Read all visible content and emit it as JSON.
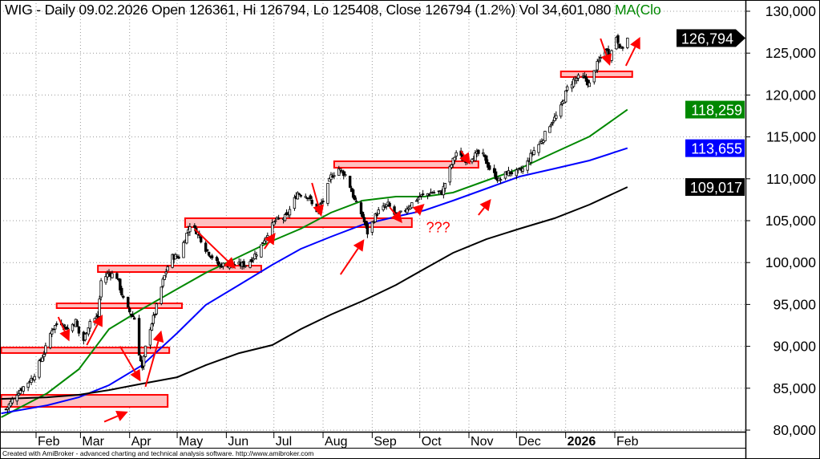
{
  "header": {
    "title": "WIG - Daily 09.02.2026 Open 126361, Hi 126794, Lo 125408, Close 126794 (1.2%) Vol 34,601,080",
    "ma_label": "MA(Clo"
  },
  "footer": "Created with AmiBroker - advanced charting and technical analysis software. http://www.amibroker.com",
  "colors": {
    "up_candle": "#ffffff",
    "down_candle": "#000000",
    "ma_green": "#008800",
    "ma_blue": "#0000ff",
    "ma_black": "#000000",
    "annotation": "#ff0000",
    "zone_fill": "#ffc0c0"
  },
  "chart_data": {
    "type": "candlestick",
    "symbol": "WIG",
    "interval": "Daily",
    "last_bar": {
      "date": "09.02.2026",
      "open": 126361,
      "high": 126794,
      "low": 125408,
      "close": 126794,
      "change_pct": 1.2,
      "volume": 34601080
    },
    "ylim": [
      80000,
      130000
    ],
    "y_ticks": [
      "130,000",
      "125,000",
      "120,000",
      "115,000",
      "110,000",
      "105,000",
      "100,000",
      "95,000",
      "90,000",
      "85,000",
      "80,000"
    ],
    "y_tick_values": [
      130000,
      125000,
      120000,
      115000,
      110000,
      105000,
      100000,
      95000,
      90000,
      85000,
      80000
    ],
    "x_ticks": [
      {
        "date": "2025-02-01",
        "label": "Feb"
      },
      {
        "date": "2025-03-01",
        "label": "Mar"
      },
      {
        "date": "2025-04-01",
        "label": "Apr"
      },
      {
        "date": "2025-05-01",
        "label": "May"
      },
      {
        "date": "2025-06-01",
        "label": "Jun"
      },
      {
        "date": "2025-07-01",
        "label": "Jul"
      },
      {
        "date": "2025-08-01",
        "label": "Aug"
      },
      {
        "date": "2025-09-01",
        "label": "Sep"
      },
      {
        "date": "2025-10-01",
        "label": "Oct"
      },
      {
        "date": "2025-11-01",
        "label": "Nov"
      },
      {
        "date": "2025-12-01",
        "label": "Dec"
      },
      {
        "date": "2026-01-01",
        "label": "2026",
        "bold": true
      },
      {
        "date": "2026-02-01",
        "label": "Feb"
      }
    ],
    "grid": true,
    "close_series": [
      [
        "2025-01-13",
        82480
      ],
      [
        "2025-01-20",
        84400
      ],
      [
        "2025-01-30",
        86300
      ],
      [
        "2025-02-06",
        89200
      ],
      [
        "2025-02-11",
        92060
      ],
      [
        "2025-02-16",
        93020
      ],
      [
        "2025-02-21",
        92060
      ],
      [
        "2025-02-26",
        93020
      ],
      [
        "2025-03-02",
        90150
      ],
      [
        "2025-03-07",
        93020
      ],
      [
        "2025-03-12",
        93500
      ],
      [
        "2025-03-14",
        97800
      ],
      [
        "2025-03-19",
        98770
      ],
      [
        "2025-03-24",
        98290
      ],
      [
        "2025-03-29",
        94940
      ],
      [
        "2025-04-05",
        93020
      ],
      [
        "2025-04-07",
        89200
      ],
      [
        "2025-04-09",
        87270
      ],
      [
        "2025-04-12",
        91100
      ],
      [
        "2025-04-17",
        93980
      ],
      [
        "2025-04-22",
        97800
      ],
      [
        "2025-04-27",
        100690
      ],
      [
        "2025-05-02",
        100690
      ],
      [
        "2025-05-09",
        104520
      ],
      [
        "2025-05-14",
        103560
      ],
      [
        "2025-05-19",
        101640
      ],
      [
        "2025-05-27",
        99730
      ],
      [
        "2025-06-04",
        99730
      ],
      [
        "2025-06-09",
        99730
      ],
      [
        "2025-06-14",
        99730
      ],
      [
        "2025-06-22",
        101640
      ],
      [
        "2025-06-27",
        103560
      ],
      [
        "2025-07-02",
        105000
      ],
      [
        "2025-07-09",
        105480
      ],
      [
        "2025-07-16",
        108350
      ],
      [
        "2025-07-23",
        107870
      ],
      [
        "2025-07-27",
        105960
      ],
      [
        "2025-08-01",
        107390
      ],
      [
        "2025-08-06",
        110270
      ],
      [
        "2025-08-11",
        111220
      ],
      [
        "2025-08-16",
        110270
      ],
      [
        "2025-08-21",
        107390
      ],
      [
        "2025-08-26",
        105480
      ],
      [
        "2025-08-29",
        103560
      ],
      [
        "2025-09-04",
        105960
      ],
      [
        "2025-09-11",
        106910
      ],
      [
        "2025-09-16",
        105480
      ],
      [
        "2025-09-20",
        105960
      ],
      [
        "2025-09-25",
        106910
      ],
      [
        "2025-10-01",
        107870
      ],
      [
        "2025-10-08",
        108350
      ],
      [
        "2025-10-15",
        108350
      ],
      [
        "2025-10-20",
        111220
      ],
      [
        "2025-10-24",
        113140
      ],
      [
        "2025-10-29",
        112180
      ],
      [
        "2025-11-03",
        112660
      ],
      [
        "2025-11-09",
        113140
      ],
      [
        "2025-11-14",
        111220
      ],
      [
        "2025-11-20",
        109790
      ],
      [
        "2025-11-25",
        110740
      ],
      [
        "2025-12-01",
        110740
      ],
      [
        "2025-12-06",
        111220
      ],
      [
        "2025-12-11",
        113140
      ],
      [
        "2025-12-17",
        114580
      ],
      [
        "2025-12-22",
        116490
      ],
      [
        "2025-12-28",
        117930
      ],
      [
        "2026-01-02",
        120800
      ],
      [
        "2026-01-06",
        121760
      ],
      [
        "2026-01-11",
        122240
      ],
      [
        "2026-01-16",
        121280
      ],
      [
        "2026-01-21",
        123680
      ],
      [
        "2026-01-26",
        125590
      ],
      [
        "2026-01-29",
        124640
      ],
      [
        "2026-02-02",
        127030
      ],
      [
        "2026-02-05",
        125400
      ],
      [
        "2026-02-09",
        126794
      ]
    ],
    "series": [
      {
        "color": "#008800",
        "last_value": 118259,
        "value_label": "118,259",
        "points": [
          [
            "2025-01-10",
            81530
          ],
          [
            "2025-02-08",
            84400
          ],
          [
            "2025-02-28",
            87270
          ],
          [
            "2025-03-19",
            92060
          ],
          [
            "2025-04-09",
            94460
          ],
          [
            "2025-05-01",
            96850
          ],
          [
            "2025-05-19",
            98770
          ],
          [
            "2025-06-09",
            100690
          ],
          [
            "2025-06-30",
            102600
          ],
          [
            "2025-07-18",
            104040
          ],
          [
            "2025-08-06",
            105960
          ],
          [
            "2025-08-26",
            107390
          ],
          [
            "2025-09-16",
            107870
          ],
          [
            "2025-10-04",
            107870
          ],
          [
            "2025-10-22",
            108350
          ],
          [
            "2025-11-12",
            109790
          ],
          [
            "2025-12-03",
            111220
          ],
          [
            "2025-12-25",
            113140
          ],
          [
            "2026-01-16",
            115050
          ],
          [
            "2026-02-09",
            118259
          ]
        ]
      },
      {
        "color": "#0000ff",
        "last_value": 113655,
        "value_label": "113,655",
        "points": [
          [
            "2025-01-10",
            82000
          ],
          [
            "2025-02-08",
            82960
          ],
          [
            "2025-02-28",
            83920
          ],
          [
            "2025-03-19",
            85360
          ],
          [
            "2025-04-09",
            87750
          ],
          [
            "2025-05-01",
            91580
          ],
          [
            "2025-05-19",
            94940
          ],
          [
            "2025-06-09",
            97330
          ],
          [
            "2025-06-30",
            99730
          ],
          [
            "2025-07-18",
            101640
          ],
          [
            "2025-08-06",
            103080
          ],
          [
            "2025-08-26",
            104520
          ],
          [
            "2025-09-16",
            105480
          ],
          [
            "2025-10-04",
            106240
          ],
          [
            "2025-10-22",
            107390
          ],
          [
            "2025-11-12",
            108830
          ],
          [
            "2025-12-03",
            110270
          ],
          [
            "2025-12-25",
            111220
          ],
          [
            "2026-01-16",
            112180
          ],
          [
            "2026-02-09",
            113655
          ]
        ]
      },
      {
        "color": "#000000",
        "last_value": 109017,
        "value_label": "109,017",
        "points": [
          [
            "2025-01-10",
            83730
          ],
          [
            "2025-02-08",
            83920
          ],
          [
            "2025-02-28",
            84210
          ],
          [
            "2025-03-19",
            84780
          ],
          [
            "2025-04-09",
            85550
          ],
          [
            "2025-05-01",
            86310
          ],
          [
            "2025-05-19",
            87750
          ],
          [
            "2025-06-09",
            89190
          ],
          [
            "2025-06-30",
            90150
          ],
          [
            "2025-07-18",
            92060
          ],
          [
            "2025-08-06",
            93790
          ],
          [
            "2025-08-26",
            95420
          ],
          [
            "2025-09-16",
            97330
          ],
          [
            "2025-10-04",
            99250
          ],
          [
            "2025-10-22",
            101160
          ],
          [
            "2025-11-12",
            102790
          ],
          [
            "2025-12-03",
            104040
          ],
          [
            "2025-12-25",
            105290
          ],
          [
            "2026-01-16",
            106920
          ],
          [
            "2026-02-09",
            109017
          ]
        ]
      }
    ],
    "last_price_label": "126,794",
    "annotations": {
      "zones": [
        {
          "from": "2025-01-10",
          "to": "2025-04-25",
          "low": 82770,
          "high": 84210
        },
        {
          "from": "2025-01-10",
          "to": "2025-04-26",
          "low": 89200,
          "high": 89860
        },
        {
          "from": "2025-02-14",
          "to": "2025-05-04",
          "low": 94560,
          "high": 95130
        },
        {
          "from": "2025-03-12",
          "to": "2025-06-23",
          "low": 98870,
          "high": 99630
        },
        {
          "from": "2025-05-06",
          "to": "2025-09-26",
          "low": 104230,
          "high": 105290
        },
        {
          "from": "2025-08-08",
          "to": "2025-11-07",
          "low": 111320,
          "high": 112090
        },
        {
          "from": "2025-12-29",
          "to": "2026-02-12",
          "low": 122150,
          "high": 122820
        }
      ],
      "arrows": [
        [
          [
            "2025-02-15",
            93500
          ],
          [
            "2025-02-22",
            90600
          ]
        ],
        [
          [
            "2025-03-05",
            90150
          ],
          [
            "2025-03-15",
            93790
          ]
        ],
        [
          [
            "2025-03-26",
            90000
          ],
          [
            "2025-04-08",
            85800
          ]
        ],
        [
          [
            "2025-04-11",
            85170
          ],
          [
            "2025-04-21",
            91900
          ]
        ],
        [
          [
            "2025-03-16",
            81000
          ],
          [
            "2025-03-31",
            82200
          ]
        ],
        [
          [
            "2025-05-12",
            104000
          ],
          [
            "2025-06-07",
            99250
          ]
        ],
        [
          [
            "2025-06-25",
            101640
          ],
          [
            "2025-07-02",
            103560
          ]
        ],
        [
          [
            "2025-07-25",
            109500
          ],
          [
            "2025-07-31",
            105480
          ]
        ],
        [
          [
            "2025-08-12",
            98580
          ],
          [
            "2025-08-27",
            102790
          ]
        ],
        [
          [
            "2025-09-12",
            106620
          ],
          [
            "2025-09-20",
            104710
          ]
        ],
        [
          [
            "2025-09-28",
            105960
          ],
          [
            "2025-10-04",
            107010
          ]
        ],
        [
          [
            "2025-10-27",
            113330
          ],
          [
            "2025-11-02",
            111700
          ]
        ],
        [
          [
            "2025-11-07",
            105670
          ],
          [
            "2025-11-15",
            107590
          ]
        ],
        [
          [
            "2026-01-23",
            126740
          ],
          [
            "2026-01-29",
            123490
          ]
        ],
        [
          [
            "2026-02-08",
            123490
          ],
          [
            "2026-02-17",
            126930
          ]
        ]
      ],
      "text": [
        {
          "date": "2025-10-05",
          "price": 104200,
          "label": "???"
        }
      ]
    }
  }
}
